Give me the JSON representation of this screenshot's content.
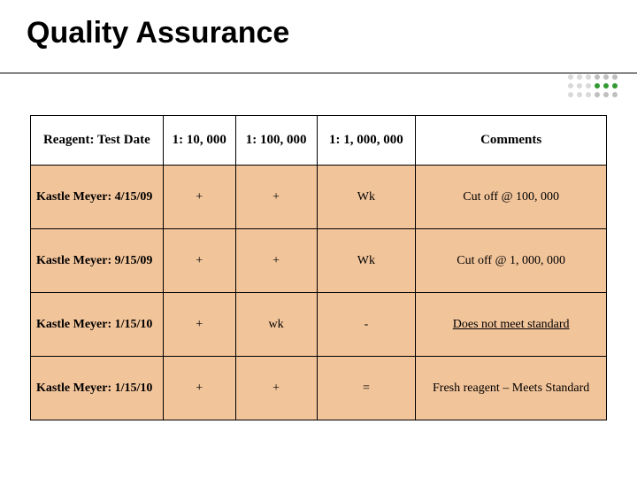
{
  "title": "Quality Assurance",
  "accent_dots": {
    "colors_row1": [
      "#d9d9d9",
      "#d9d9d9",
      "#d9d9d9",
      "#bfbfbf",
      "#bfbfbf",
      "#bfbfbf"
    ],
    "colors_row2": [
      "#d9d9d9",
      "#d9d9d9",
      "#d9d9d9",
      "#339933",
      "#339933",
      "#339933"
    ],
    "colors_row3": [
      "#d9d9d9",
      "#d9d9d9",
      "#d9d9d9",
      "#bfbfbf",
      "#bfbfbf",
      "#bfbfbf"
    ]
  },
  "table": {
    "header_bg": "#ffffff",
    "cell_bg": "#f2c49a",
    "border_color": "#000000",
    "columns": [
      "Reagent: Test Date",
      "1: 10, 000",
      "1: 100, 000",
      "1: 1, 000, 000",
      "Comments"
    ],
    "rows": [
      [
        "Kastle Meyer: 4/15/09",
        "+",
        "+",
        "Wk",
        "Cut off @ 100, 000"
      ],
      [
        "Kastle Meyer: 9/15/09",
        "+",
        "+",
        "Wk",
        "Cut off @ 1, 000, 000"
      ],
      [
        "Kastle Meyer: 1/15/10",
        "+",
        "wk",
        "-",
        "Does not meet standard"
      ],
      [
        "Kastle Meyer: 1/15/10",
        "+",
        "+",
        "=",
        "Fresh reagent – Meets Standard"
      ]
    ]
  }
}
